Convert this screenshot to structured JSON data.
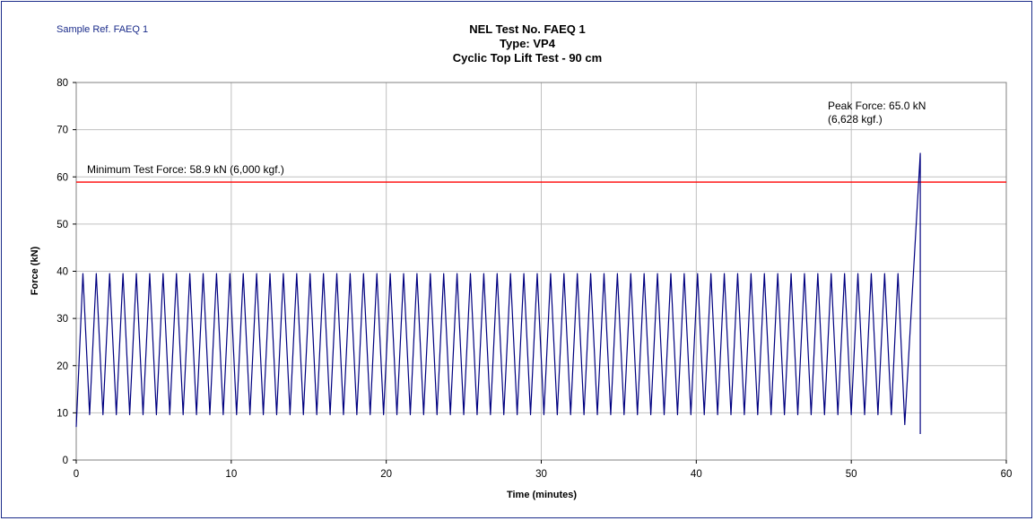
{
  "chart_data": {
    "type": "line",
    "sample_ref": "Sample Ref. FAEQ 1",
    "title_lines": [
      "NEL Test No. FAEQ 1",
      "Type: VP4",
      "Cyclic Top Lift Test - 90 cm"
    ],
    "xlabel": "Time (minutes)",
    "ylabel": "Force (kN)",
    "xlim": [
      0,
      60
    ],
    "ylim": [
      0,
      80
    ],
    "x_ticks": [
      0,
      10,
      20,
      30,
      40,
      50,
      60
    ],
    "y_ticks": [
      0,
      10,
      20,
      30,
      40,
      50,
      60,
      70,
      80
    ],
    "grid": true,
    "cyclic": {
      "start_time": 0,
      "start_force": 7.0,
      "cycles": 62,
      "cycle_period_min": 0.862,
      "min_force": 9.6,
      "max_force": 39.5,
      "end_time": 53.45,
      "end_force": 7.5
    },
    "final_ramp": {
      "x": [
        53.45,
        54.45,
        54.45
      ],
      "y": [
        7.5,
        65.0,
        5.5
      ]
    },
    "reference_line": {
      "y": 58.9,
      "label": "Minimum Test Force: 58.9 kN (6,000 kgf.)",
      "color": "#ff0000"
    },
    "annotations": {
      "peak_line1": "Peak Force: 65.0 kN",
      "peak_line2": "(6,628 kgf.)"
    },
    "colors": {
      "series": "#000080",
      "grid": "#c0c0c0",
      "frame": "#1a2b8a",
      "sample_ref": "#1a2b8a"
    }
  }
}
